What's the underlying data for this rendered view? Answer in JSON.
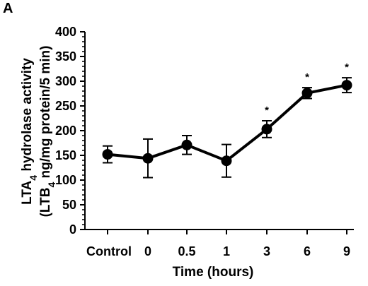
{
  "panel_label": "A",
  "chart_data": {
    "type": "line",
    "categories": [
      "Control",
      "0",
      "0.5",
      "1",
      "3",
      "6",
      "9"
    ],
    "series": [
      {
        "values": [
          152,
          144,
          171,
          139,
          203,
          276,
          292
        ],
        "error": [
          17,
          39,
          19,
          33,
          17,
          11,
          15
        ],
        "significant": [
          false,
          false,
          false,
          false,
          true,
          true,
          true
        ]
      }
    ],
    "significance_marker": "*",
    "xlabel": "Time (hours)",
    "ylabel_line1": "LTA4 hydrolase activity",
    "ylabel_line2": "(LTB4 ng/mg protein/5 min)",
    "ylim": [
      0,
      400
    ],
    "yticks": [
      "0",
      "50",
      "100",
      "150",
      "200",
      "250",
      "300",
      "350",
      "400"
    ],
    "grid": false
  }
}
